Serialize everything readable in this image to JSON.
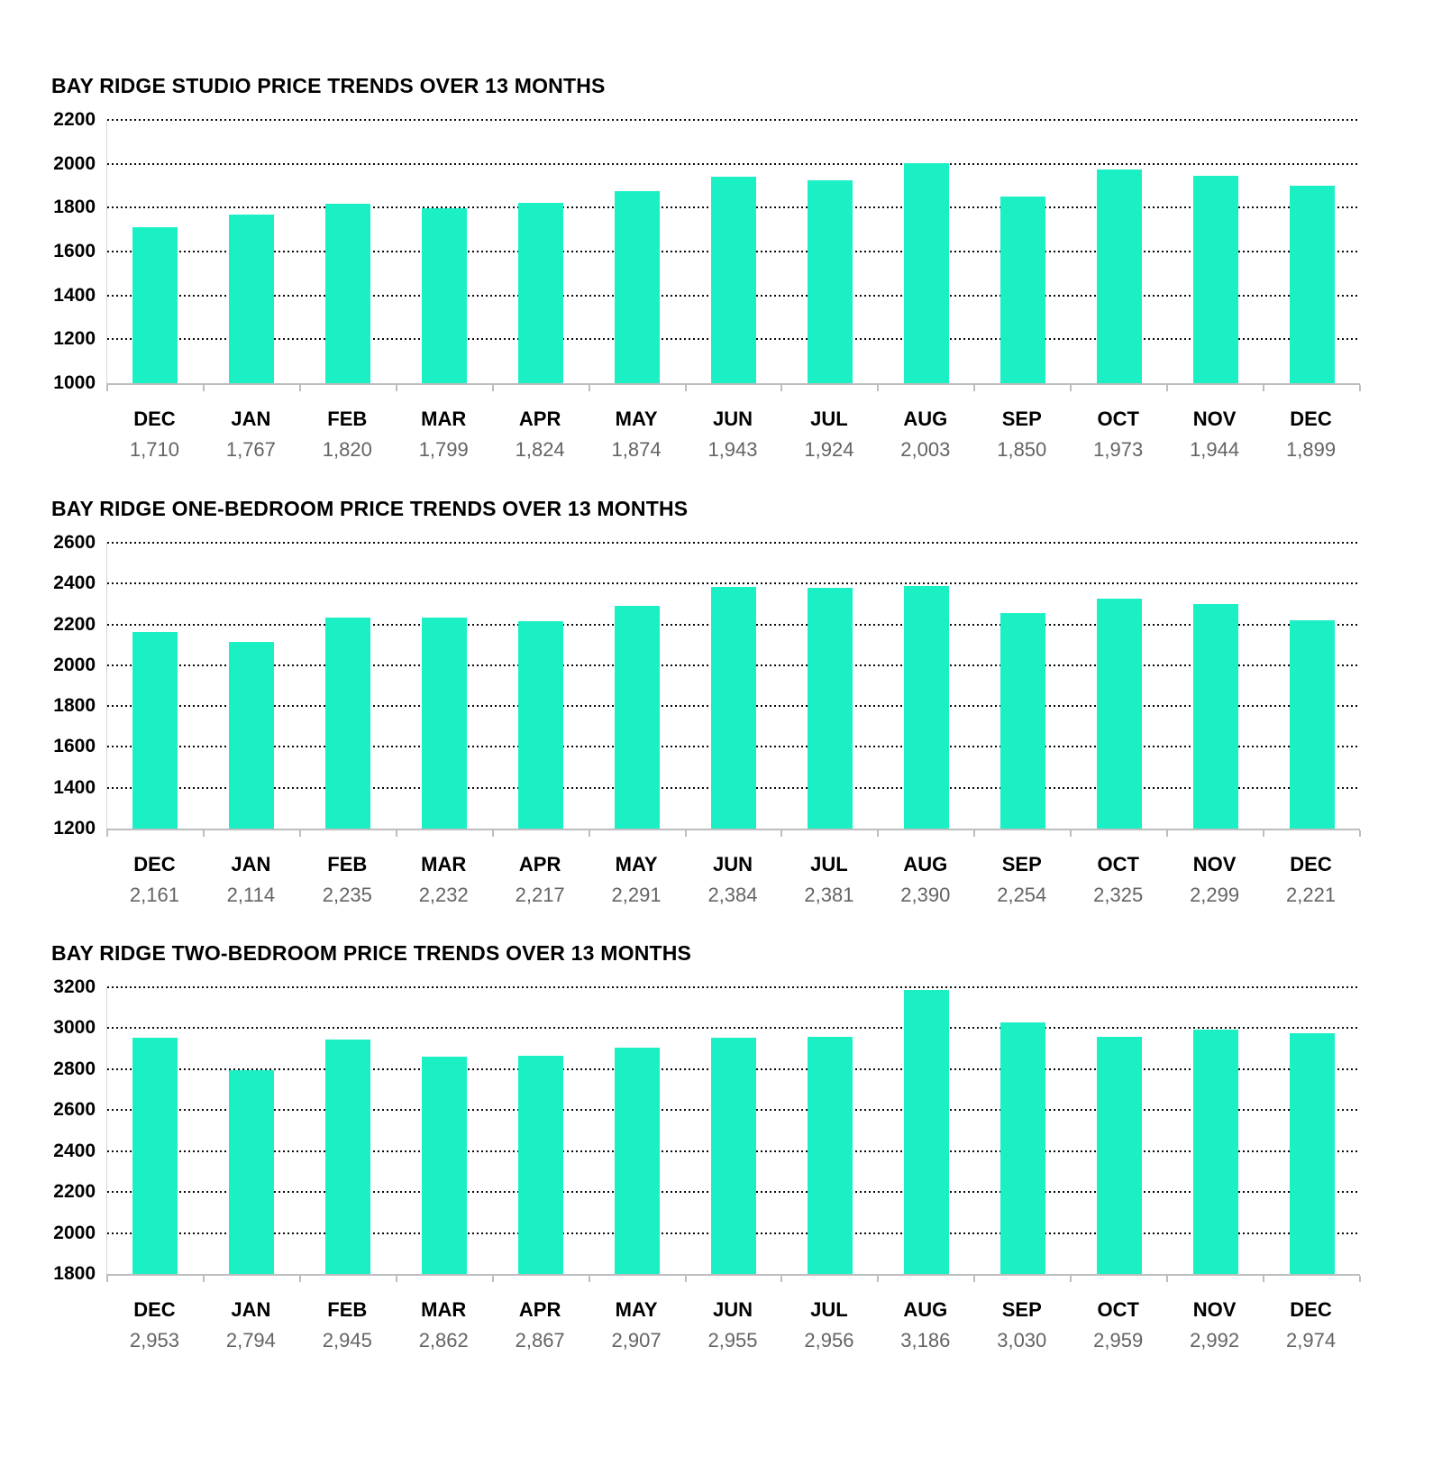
{
  "colors": {
    "bar": "#1bf0c5",
    "value_label": "#646464",
    "axis_line": "#bdbdbd",
    "gridline": "#0a0a0a",
    "title": "#000000",
    "month_label": "#000000"
  },
  "chart_data": [
    {
      "type": "bar",
      "title": "BAY RIDGE STUDIO PRICE TRENDS OVER 13 MONTHS",
      "categories": [
        "DEC",
        "JAN",
        "FEB",
        "MAR",
        "APR",
        "MAY",
        "JUN",
        "JUL",
        "AUG",
        "SEP",
        "OCT",
        "NOV",
        "DEC"
      ],
      "values": [
        1710,
        1767,
        1820,
        1799,
        1824,
        1874,
        1943,
        1924,
        2003,
        1850,
        1973,
        1944,
        1899
      ],
      "values_formatted": [
        "1,710",
        "1,767",
        "1,820",
        "1,799",
        "1,824",
        "1,874",
        "1,943",
        "1,924",
        "2,003",
        "1,850",
        "1,973",
        "1,944",
        "1,899"
      ],
      "ylim": [
        1000,
        2200
      ],
      "yticks": [
        2200,
        2000,
        1800,
        1600,
        1400,
        1200,
        1000
      ],
      "xlabel": "",
      "ylabel": "",
      "grid": true,
      "legend": "none"
    },
    {
      "type": "bar",
      "title": "BAY RIDGE ONE-BEDROOM PRICE TRENDS OVER 13 MONTHS",
      "categories": [
        "DEC",
        "JAN",
        "FEB",
        "MAR",
        "APR",
        "MAY",
        "JUN",
        "JUL",
        "AUG",
        "SEP",
        "OCT",
        "NOV",
        "DEC"
      ],
      "values": [
        2161,
        2114,
        2235,
        2232,
        2217,
        2291,
        2384,
        2381,
        2390,
        2254,
        2325,
        2299,
        2221
      ],
      "values_formatted": [
        "2,161",
        "2,114",
        "2,235",
        "2,232",
        "2,217",
        "2,291",
        "2,384",
        "2,381",
        "2,390",
        "2,254",
        "2,325",
        "2,299",
        "2,221"
      ],
      "ylim": [
        1200,
        2600
      ],
      "yticks": [
        2600,
        2400,
        2200,
        2000,
        1800,
        1600,
        1400,
        1200
      ],
      "xlabel": "",
      "ylabel": "",
      "grid": true,
      "legend": "none"
    },
    {
      "type": "bar",
      "title": "BAY RIDGE TWO-BEDROOM PRICE TRENDS OVER 13 MONTHS",
      "categories": [
        "DEC",
        "JAN",
        "FEB",
        "MAR",
        "APR",
        "MAY",
        "JUN",
        "JUL",
        "AUG",
        "SEP",
        "OCT",
        "NOV",
        "DEC"
      ],
      "values": [
        2953,
        2794,
        2945,
        2862,
        2867,
        2907,
        2955,
        2956,
        3186,
        3030,
        2959,
        2992,
        2974
      ],
      "values_formatted": [
        "2,953",
        "2,794",
        "2,945",
        "2,862",
        "2,867",
        "2,907",
        "2,955",
        "2,956",
        "3,186",
        "3,030",
        "2,959",
        "2,992",
        "2,974"
      ],
      "ylim": [
        1800,
        3200
      ],
      "yticks": [
        3200,
        3000,
        2800,
        2600,
        2400,
        2200,
        2000,
        1800
      ],
      "xlabel": "",
      "ylabel": "",
      "grid": true,
      "legend": "none"
    }
  ]
}
